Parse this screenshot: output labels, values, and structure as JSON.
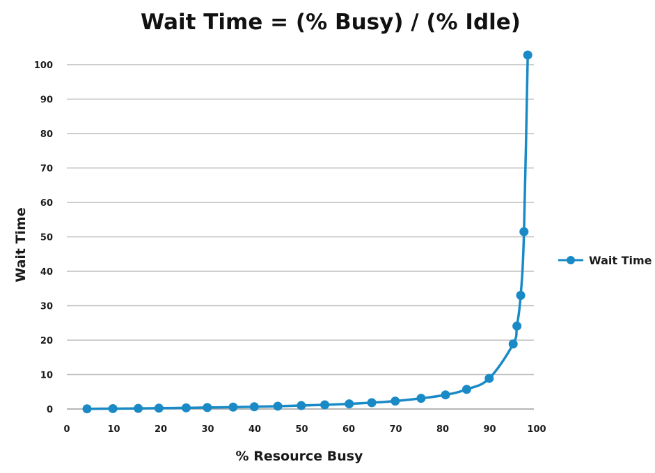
{
  "chart_data": {
    "type": "line",
    "title": "Wait Time = (% Busy) / (% Idle)",
    "xlabel": "% Resource Busy",
    "ylabel": "Wait Time",
    "xlim": [
      0,
      100
    ],
    "ylim": [
      0,
      100
    ],
    "x_ticks": [
      "0",
      "10",
      "20",
      "30",
      "40",
      "50",
      "60",
      "70",
      "80",
      "90",
      "100"
    ],
    "y_ticks": [
      "0",
      "10",
      "20",
      "30",
      "40",
      "50",
      "60",
      "70",
      "80",
      "90",
      "100"
    ],
    "grid": true,
    "legend": "right",
    "series": [
      {
        "name": "Wait Time",
        "color": "#1a8ac6",
        "x": [
          4.3,
          9.8,
          15.2,
          19.6,
          25.4,
          29.9,
          35.4,
          39.9,
          44.9,
          49.9,
          54.9,
          60.1,
          64.9,
          69.9,
          75.4,
          80.6,
          85.1,
          89.9,
          95.0,
          95.8,
          96.6,
          97.3,
          98.1
        ],
        "y": [
          0.05,
          0.11,
          0.18,
          0.24,
          0.34,
          0.43,
          0.55,
          0.66,
          0.82,
          1.0,
          1.22,
          1.5,
          1.85,
          2.3,
          3.1,
          4.1,
          5.7,
          8.9,
          18.9,
          24.1,
          33.0,
          51.5,
          102.8
        ]
      }
    ]
  }
}
